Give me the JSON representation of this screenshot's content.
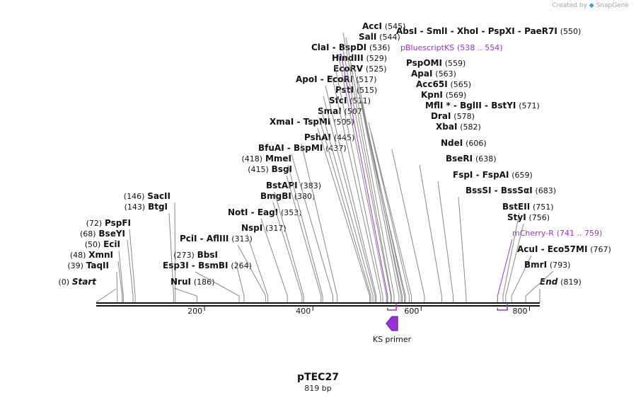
{
  "watermark": {
    "prefix": "Created by",
    "brand": "SnapGene"
  },
  "plasmid": {
    "name": "pTEC27",
    "length_label": "819 bp",
    "length_bp": 819
  },
  "colors": {
    "feature": "#9b30d9",
    "line": "#111111",
    "leader": "#888888"
  },
  "ticks": [
    {
      "bp": 200,
      "label": "200"
    },
    {
      "bp": 400,
      "label": "400"
    },
    {
      "bp": 600,
      "label": "600"
    },
    {
      "bp": 800,
      "label": "800"
    }
  ],
  "labels": [
    {
      "pos": "(0)",
      "name": "Start",
      "bp": 0,
      "italic": true
    },
    {
      "pos": "(819)",
      "name": "End",
      "bp": 819,
      "italic": true
    },
    {
      "pos": "(39)",
      "name": "TaqII",
      "bp": 39
    },
    {
      "pos": "(48)",
      "name": "XmnI",
      "bp": 48
    },
    {
      "pos": "(50)",
      "name": "EciI",
      "bp": 50
    },
    {
      "pos": "(68)",
      "name": "BseYI",
      "bp": 68
    },
    {
      "pos": "(72)",
      "name": "PspFI",
      "bp": 72
    },
    {
      "pos": "(143)",
      "name": "BtgI",
      "bp": 143
    },
    {
      "pos": "(146)",
      "name": "SacII",
      "bp": 146
    },
    {
      "pos": "(186)",
      "name": "NruI",
      "bp": 186
    },
    {
      "pos": "(264)",
      "name": "Esp3I  -  BsmBI",
      "bp": 264
    },
    {
      "pos": "(273)",
      "name": "BbsI",
      "bp": 273
    },
    {
      "pos": "(313)",
      "name": "PciI  -  AflIII",
      "bp": 313
    },
    {
      "pos": "(317)",
      "name": "NspI",
      "bp": 317
    },
    {
      "pos": "(353)",
      "name": "NotI  -  EagI",
      "bp": 353
    },
    {
      "pos": "(380)",
      "name": "BmgBI",
      "bp": 380
    },
    {
      "pos": "(383)",
      "name": "BstAPI",
      "bp": 383
    },
    {
      "pos": "(415)",
      "name": "BsgI",
      "bp": 415
    },
    {
      "pos": "(418)",
      "name": "MmeI",
      "bp": 418
    },
    {
      "pos": "(437)",
      "name": "BfuAI  -  BspMI",
      "bp": 437
    },
    {
      "pos": "(445)",
      "name": "PshAI",
      "bp": 445
    },
    {
      "pos": "(505)",
      "name": "XmaI  -  TspMI",
      "bp": 505
    },
    {
      "pos": "(507)",
      "name": "SmaI",
      "bp": 507
    },
    {
      "pos": "(511)",
      "name": "SfcI",
      "bp": 511
    },
    {
      "pos": "(515)",
      "name": "PstI",
      "bp": 515
    },
    {
      "pos": "(517)",
      "name": "ApoI  -  EcoRI",
      "bp": 517
    },
    {
      "pos": "(525)",
      "name": "EcoRV",
      "bp": 525
    },
    {
      "pos": "(529)",
      "name": "HindIII",
      "bp": 529
    },
    {
      "pos": "(536)",
      "name": "ClaI  -  BspDI",
      "bp": 536
    },
    {
      "pos": "(544)",
      "name": "SalI",
      "bp": 544
    },
    {
      "pos": "(545)",
      "name": "AccI",
      "bp": 545
    },
    {
      "pos": "(550)",
      "name": "AbsI  -  SmlI  -  XhoI  -  PspXI  -  PaeR7I",
      "bp": 550
    },
    {
      "pos": "(538 .. 554)",
      "name": "pBluescriptKS",
      "bp": 538,
      "feature": true
    },
    {
      "pos": "(559)",
      "name": "PspOMI",
      "bp": 559
    },
    {
      "pos": "(563)",
      "name": "ApaI",
      "bp": 563
    },
    {
      "pos": "(565)",
      "name": "Acc65I",
      "bp": 565
    },
    {
      "pos": "(569)",
      "name": "KpnI",
      "bp": 569
    },
    {
      "pos": "(571)",
      "name": "MflI *  -  BglII  -  BstYI",
      "bp": 571
    },
    {
      "pos": "(578)",
      "name": "DraI",
      "bp": 578
    },
    {
      "pos": "(582)",
      "name": "XbaI",
      "bp": 582
    },
    {
      "pos": "(606)",
      "name": "NdeI",
      "bp": 606
    },
    {
      "pos": "(638)",
      "name": "BseRI",
      "bp": 638
    },
    {
      "pos": "(659)",
      "name": "FspI  -  FspAI",
      "bp": 659
    },
    {
      "pos": "(683)",
      "name": "BssSI  -  BssSαI",
      "bp": 683
    },
    {
      "pos": "(751)",
      "name": "BstEII",
      "bp": 751
    },
    {
      "pos": "(756)",
      "name": "StyI",
      "bp": 756
    },
    {
      "pos": "(741 .. 759)",
      "name": "mCherry-R",
      "bp": 741,
      "feature": true
    },
    {
      "pos": "(767)",
      "name": "AcuI  -  Eco57MI",
      "bp": 767
    },
    {
      "pos": "(793)",
      "name": "BmrI",
      "bp": 793
    }
  ],
  "primers": [
    {
      "name": "KS primer",
      "start": 538,
      "end": 554,
      "direction": "reverse"
    }
  ]
}
